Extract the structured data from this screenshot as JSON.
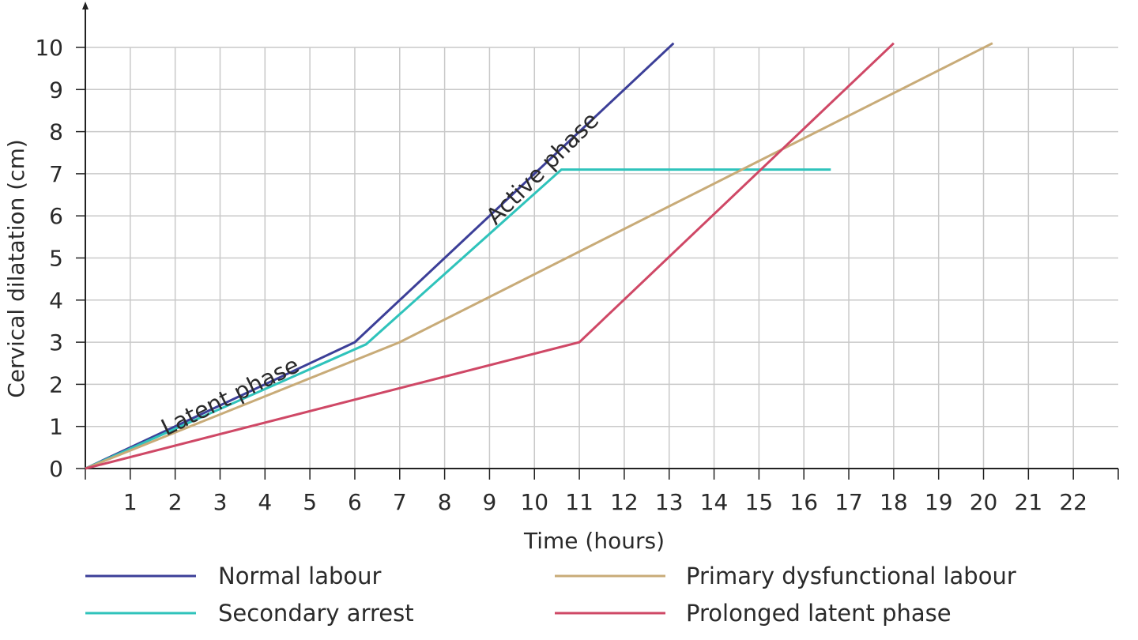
{
  "chart_data": {
    "type": "line",
    "xlabel": "Time (hours)",
    "ylabel": "Cervical dilatation (cm)",
    "xlim": [
      0,
      23
    ],
    "ylim": [
      0,
      10
    ],
    "x_ticks": [
      1,
      2,
      3,
      4,
      5,
      6,
      7,
      8,
      9,
      10,
      11,
      12,
      13,
      14,
      15,
      16,
      17,
      18,
      19,
      20,
      21,
      22
    ],
    "y_ticks": [
      0,
      1,
      2,
      3,
      4,
      5,
      6,
      7,
      8,
      9,
      10
    ],
    "grid": true,
    "legend_position": "bottom",
    "series": [
      {
        "name": "Normal labour",
        "color": "#3c3f98",
        "points": [
          [
            0,
            0
          ],
          [
            6,
            3
          ],
          [
            13.1,
            10.1
          ]
        ]
      },
      {
        "name": "Secondary arrest",
        "color": "#2fc3bb",
        "points": [
          [
            0,
            0
          ],
          [
            6.25,
            2.95
          ],
          [
            10.6,
            7.1
          ],
          [
            16.6,
            7.1
          ]
        ]
      },
      {
        "name": "Primary dysfunctional labour",
        "color": "#c8ab78",
        "points": [
          [
            0,
            0
          ],
          [
            7,
            3
          ],
          [
            20.2,
            10.1
          ]
        ]
      },
      {
        "name": "Prolonged latent phase",
        "color": "#cf4866",
        "points": [
          [
            0,
            0
          ],
          [
            11,
            3
          ],
          [
            18,
            10.1
          ]
        ]
      }
    ],
    "annotations": [
      {
        "text": "Latent phase",
        "x": 3.3,
        "y": 1.55,
        "angle": -26
      },
      {
        "text": "Active phase",
        "x": 10.3,
        "y": 7.0,
        "angle": -45
      }
    ]
  }
}
